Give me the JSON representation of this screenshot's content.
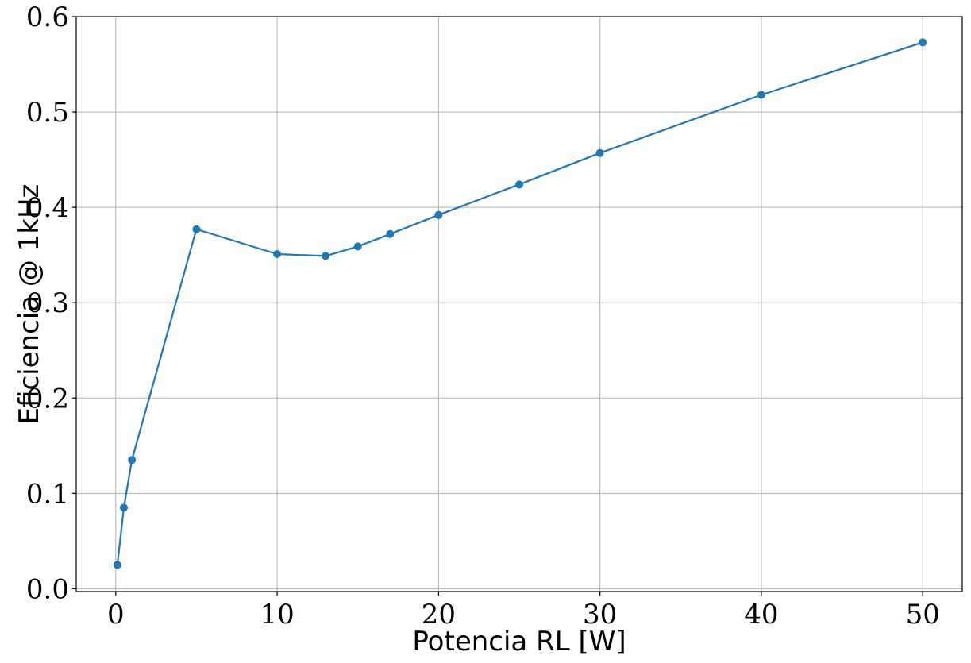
{
  "chart_data": {
    "type": "line",
    "title": "",
    "xlabel": "Potencia RL [W]",
    "ylabel": "Eficiencia @ 1kHz",
    "xlim": [
      -2.45,
      52.45
    ],
    "ylim": [
      -0.003,
      0.6
    ],
    "x_ticks": [
      0,
      10,
      20,
      30,
      40,
      50
    ],
    "y_ticks": [
      0.0,
      0.1,
      0.2,
      0.3,
      0.4,
      0.5,
      0.6
    ],
    "x_tick_labels": [
      "0",
      "10",
      "20",
      "30",
      "40",
      "50"
    ],
    "y_tick_labels": [
      "0.0",
      "0.1",
      "0.2",
      "0.3",
      "0.4",
      "0.5",
      "0.6"
    ],
    "grid": true,
    "legend": "none",
    "series": [
      {
        "color": "#1f77b4",
        "marker": "circle",
        "x": [
          0.1,
          0.5,
          1,
          5,
          10,
          13,
          15,
          17,
          20,
          25,
          30,
          40,
          50
        ],
        "y": [
          0.025,
          0.085,
          0.135,
          0.377,
          0.351,
          0.349,
          0.359,
          0.372,
          0.392,
          0.424,
          0.457,
          0.518,
          0.573
        ]
      }
    ]
  }
}
